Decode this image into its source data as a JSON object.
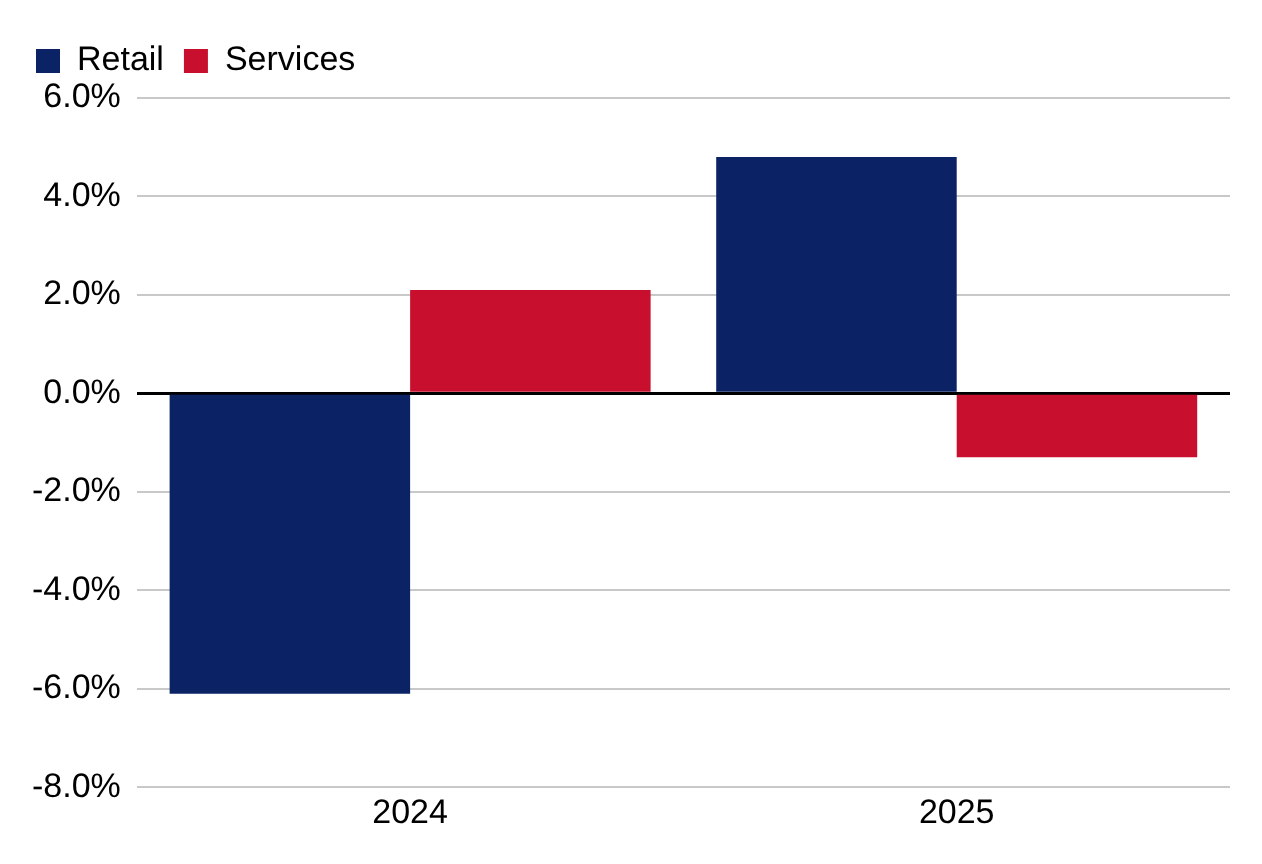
{
  "chart_data": {
    "type": "bar",
    "categories": [
      "2024",
      "2025"
    ],
    "series": [
      {
        "name": "Retail",
        "color": "#0b2265",
        "values": [
          -6.1,
          4.8
        ]
      },
      {
        "name": "Services",
        "color": "#c8102e",
        "values": [
          2.1,
          -1.3
        ]
      }
    ],
    "ylim": [
      -8,
      6
    ],
    "yticks": [
      {
        "value": -8,
        "label": "-8.0%"
      },
      {
        "value": -6,
        "label": "-6.0%"
      },
      {
        "value": -4,
        "label": "-4.0%"
      },
      {
        "value": -2,
        "label": "-2.0%"
      },
      {
        "value": 0,
        "label": "0.0%"
      },
      {
        "value": 2,
        "label": "2.0%"
      },
      {
        "value": 4,
        "label": "4.0%"
      },
      {
        "value": 6,
        "label": "6.0%"
      }
    ],
    "grid": "y",
    "legend": "top left"
  }
}
